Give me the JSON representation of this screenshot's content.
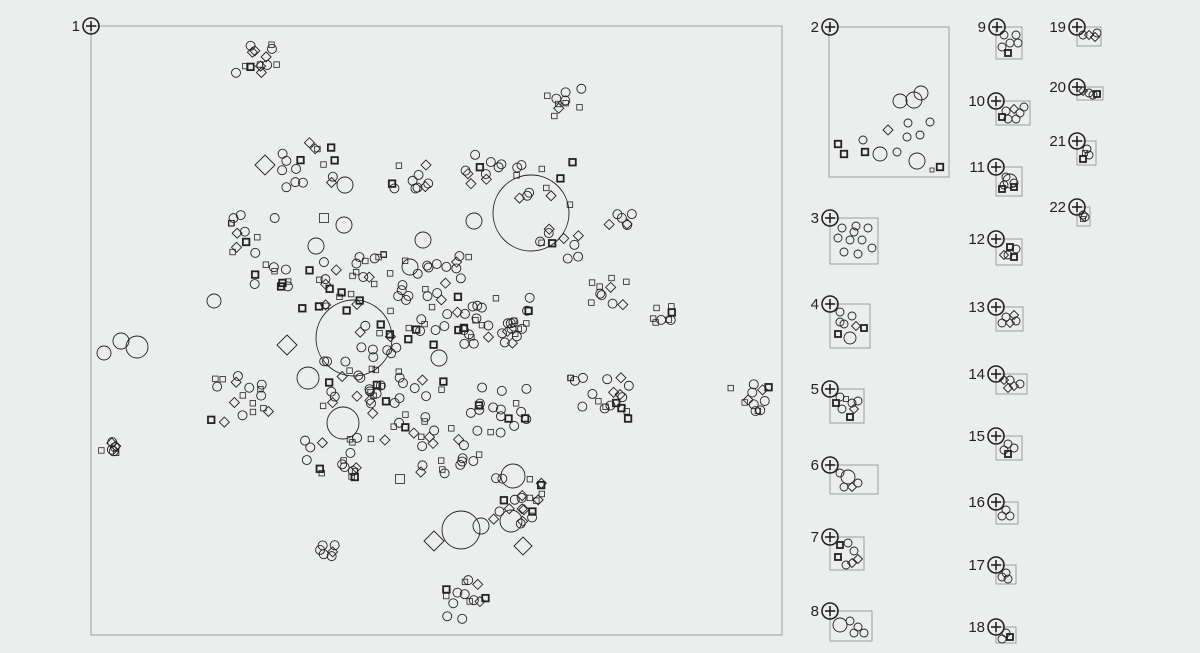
{
  "colors": {
    "background": "#eceeed",
    "stroke": "#222222",
    "frame": "#8a8a8a"
  },
  "panels": [
    {
      "label": "1"
    },
    {
      "label": "2"
    },
    {
      "label": "3"
    },
    {
      "label": "4"
    },
    {
      "label": "5"
    },
    {
      "label": "6"
    },
    {
      "label": "7"
    },
    {
      "label": "8"
    },
    {
      "label": "9"
    },
    {
      "label": "10"
    },
    {
      "label": "11"
    },
    {
      "label": "12"
    },
    {
      "label": "13"
    },
    {
      "label": "14"
    },
    {
      "label": "15"
    },
    {
      "label": "16"
    },
    {
      "label": "17"
    },
    {
      "label": "18"
    },
    {
      "label": "19"
    },
    {
      "label": "20"
    },
    {
      "label": "21"
    },
    {
      "label": "22"
    }
  ],
  "marker_icon": "circle-plus-icon",
  "glyph_kinds": [
    "circle",
    "square",
    "bold-square",
    "diamond"
  ]
}
